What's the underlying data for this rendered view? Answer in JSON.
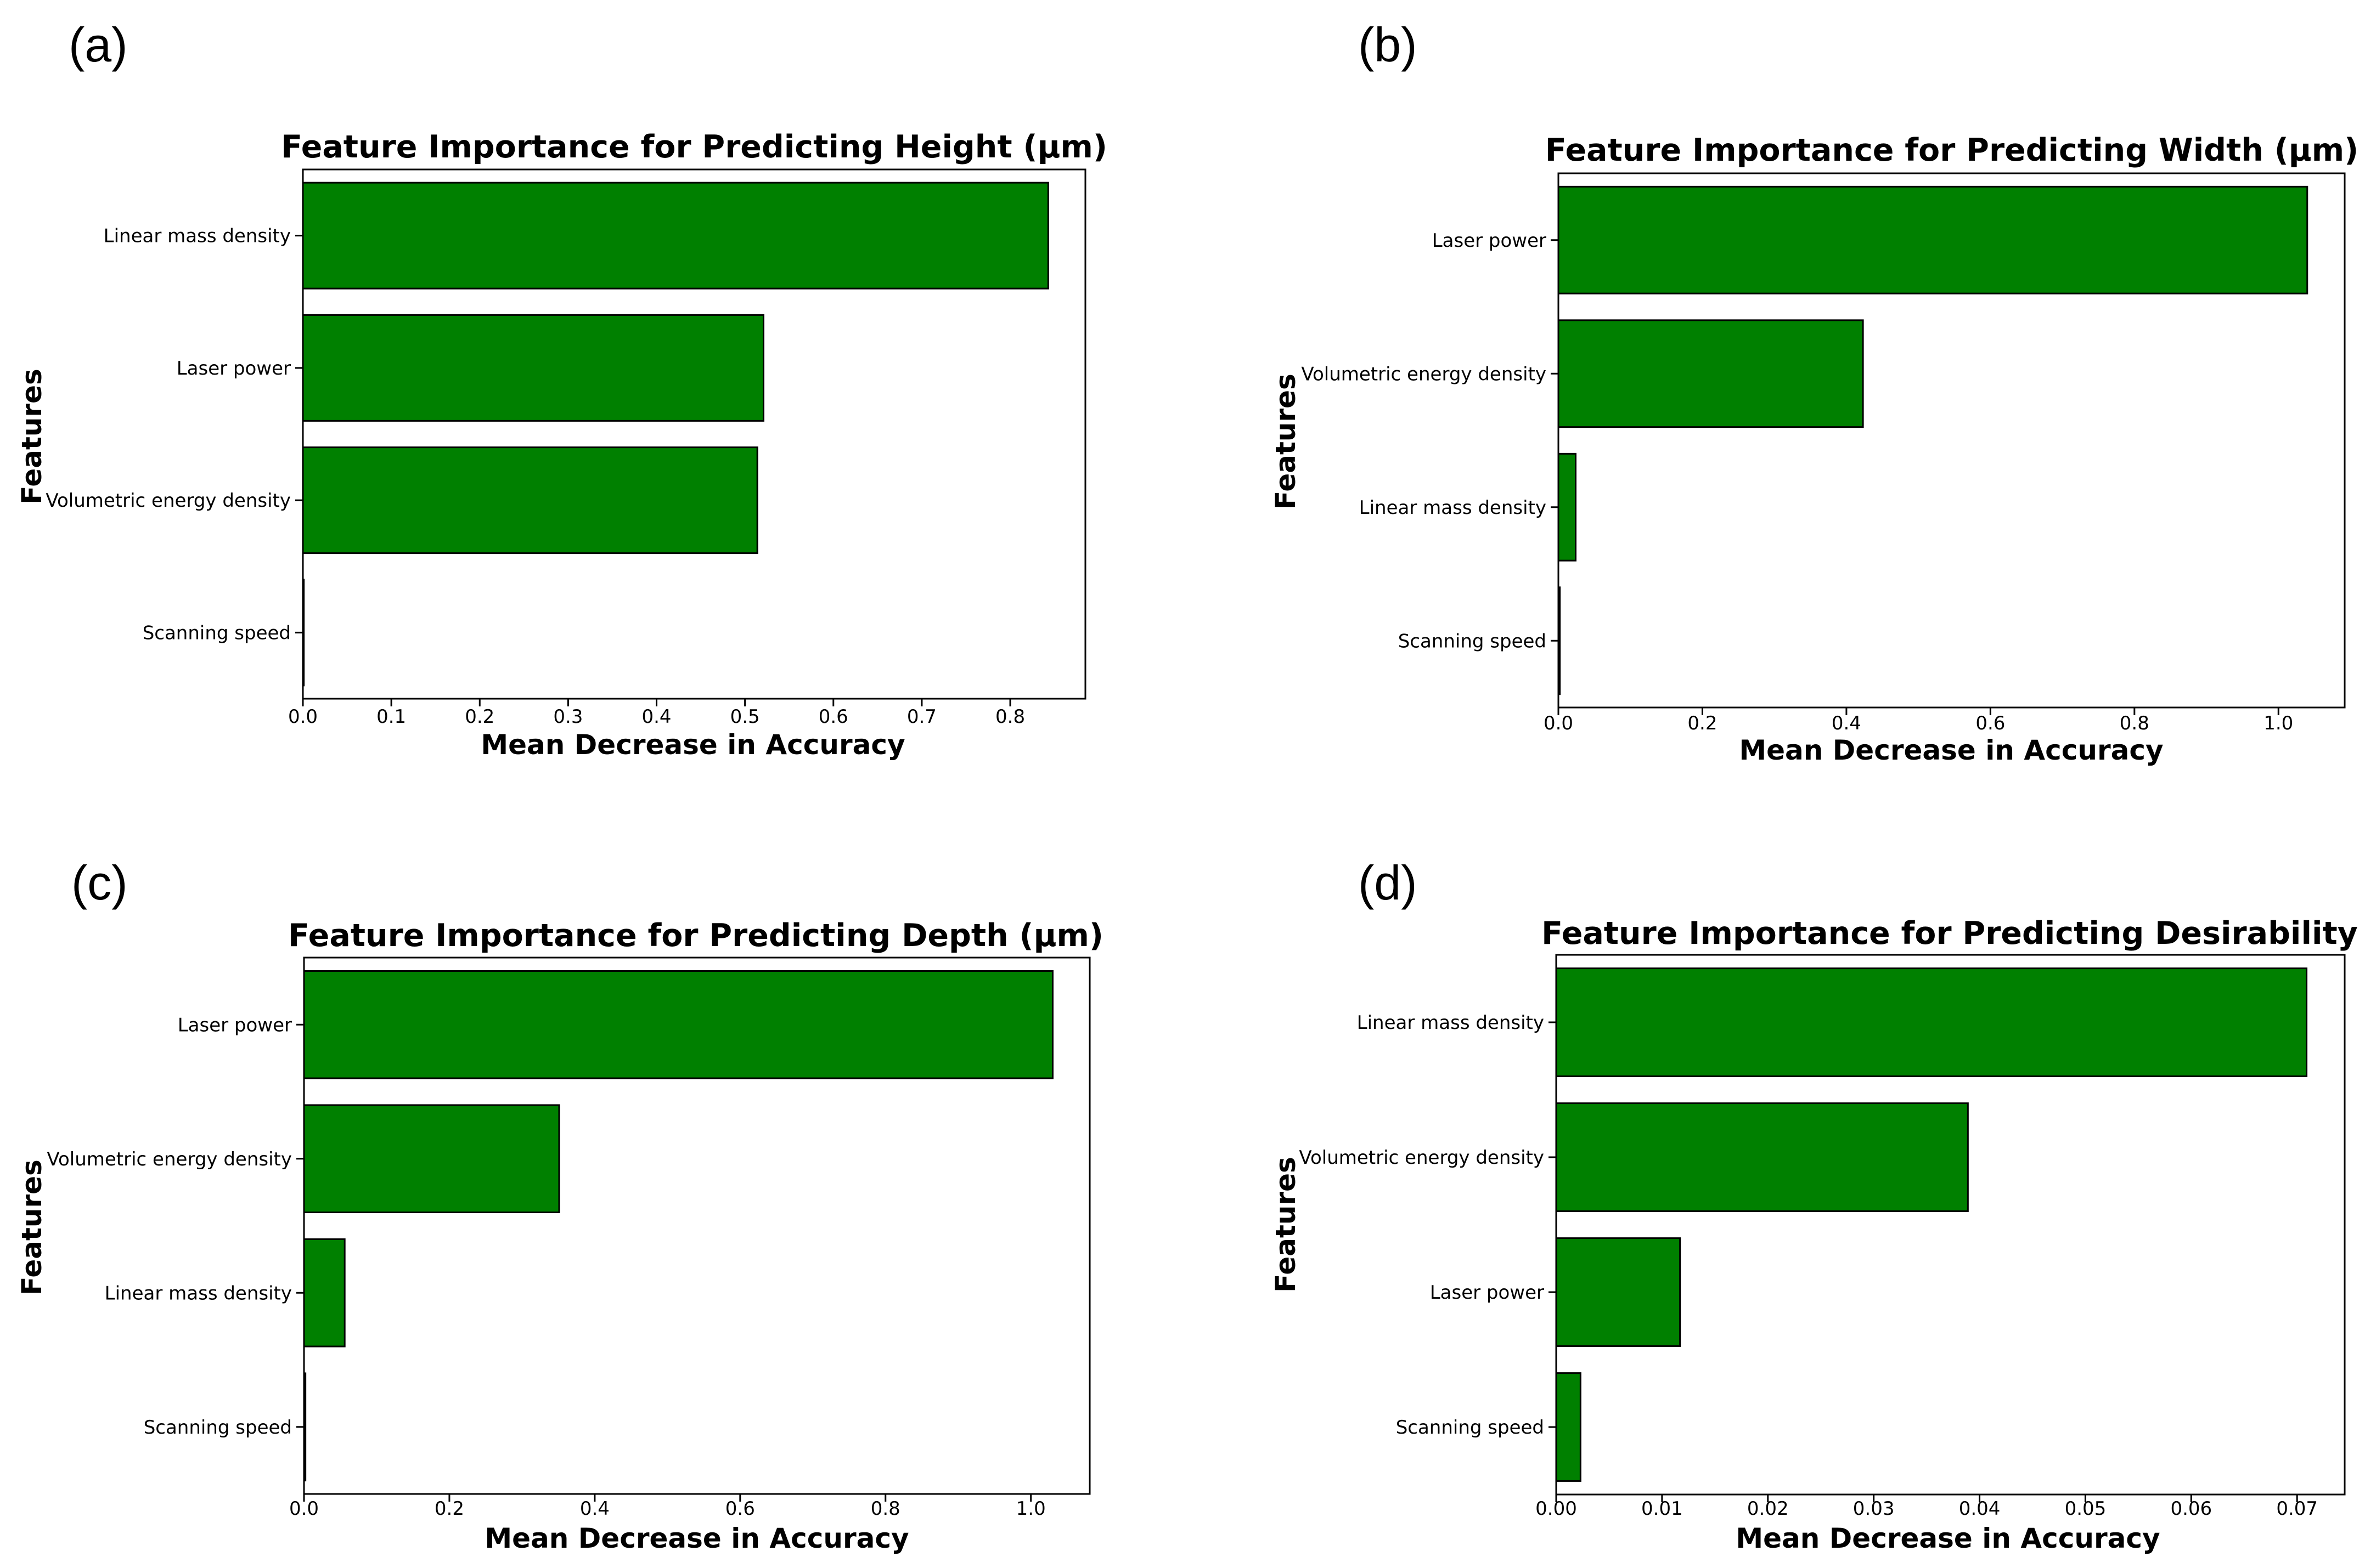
{
  "figure": {
    "panels": [
      "(a)",
      "(b)",
      "(c)",
      "(d)"
    ]
  },
  "chart_data": [
    {
      "type": "bar",
      "orientation": "horizontal",
      "panel": "(a)",
      "title": "Feature Importance for Predicting Height (μm)",
      "xlabel": "Mean Decrease in Accuracy",
      "ylabel": "Features",
      "categories": [
        "Linear mass density",
        "Laser power",
        "Volumetric energy density",
        "Scanning speed"
      ],
      "values": [
        0.843,
        0.521,
        0.514,
        0.001
      ],
      "xlim": [
        0,
        0.885
      ],
      "xticks": [
        0.0,
        0.1,
        0.2,
        0.3,
        0.4,
        0.5,
        0.6,
        0.7,
        0.8
      ],
      "xtick_labels": [
        "0.0",
        "0.1",
        "0.2",
        "0.3",
        "0.4",
        "0.5",
        "0.6",
        "0.7",
        "0.8"
      ],
      "grid": false
    },
    {
      "type": "bar",
      "orientation": "horizontal",
      "panel": "(b)",
      "title": "Feature Importance for Predicting Width (μm)",
      "xlabel": "Mean Decrease in Accuracy",
      "ylabel": "Features",
      "categories": [
        "Laser power",
        "Volumetric energy density",
        "Linear mass density",
        "Scanning speed"
      ],
      "values": [
        1.04,
        0.423,
        0.024,
        0.002
      ],
      "xlim": [
        0,
        1.092
      ],
      "xticks": [
        0.0,
        0.2,
        0.4,
        0.6,
        0.8,
        1.0
      ],
      "xtick_labels": [
        "0.0",
        "0.2",
        "0.4",
        "0.6",
        "0.8",
        "1.0"
      ],
      "grid": false
    },
    {
      "type": "bar",
      "orientation": "horizontal",
      "panel": "(c)",
      "title": "Feature Importance for Predicting Depth (μm)",
      "xlabel": "Mean Decrease in Accuracy",
      "ylabel": "Features",
      "categories": [
        "Laser power",
        "Volumetric energy density",
        "Linear mass density",
        "Scanning speed"
      ],
      "values": [
        1.03,
        0.351,
        0.056,
        0.002
      ],
      "xlim": [
        0,
        1.081
      ],
      "xticks": [
        0.0,
        0.2,
        0.4,
        0.6,
        0.8,
        1.0
      ],
      "xtick_labels": [
        "0.0",
        "0.2",
        "0.4",
        "0.6",
        "0.8",
        "1.0"
      ],
      "grid": false
    },
    {
      "type": "bar",
      "orientation": "horizontal",
      "panel": "(d)",
      "title": "Feature Importance for Predicting Desirability",
      "xlabel": "Mean Decrease in Accuracy",
      "ylabel": "Features",
      "categories": [
        "Linear mass density",
        "Volumetric energy density",
        "Laser power",
        "Scanning speed"
      ],
      "values": [
        0.0709,
        0.0389,
        0.0117,
        0.0023
      ],
      "xlim": [
        0,
        0.0745
      ],
      "xticks": [
        0.0,
        0.01,
        0.02,
        0.03,
        0.04,
        0.05,
        0.06,
        0.07
      ],
      "xtick_labels": [
        "0.00",
        "0.01",
        "0.02",
        "0.03",
        "0.04",
        "0.05",
        "0.06",
        "0.07"
      ],
      "grid": false
    }
  ]
}
